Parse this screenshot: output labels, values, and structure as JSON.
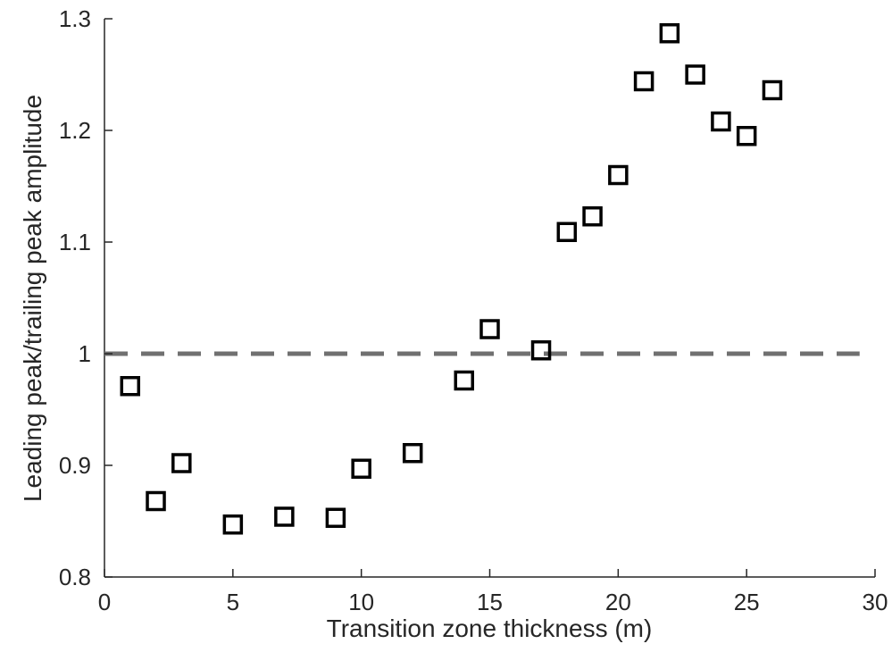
{
  "chart_data": {
    "type": "scatter",
    "title": "",
    "xlabel": "Transition zone thickness (m)",
    "ylabel": "Leading peak/trailing peak amplitude",
    "xlim": [
      0,
      30
    ],
    "ylim": [
      0.8,
      1.3
    ],
    "xticks": [
      0,
      5,
      10,
      15,
      20,
      25,
      30
    ],
    "xtick_labels": [
      "0",
      "5",
      "10",
      "15",
      "20",
      "25",
      "30"
    ],
    "yticks": [
      0.8,
      0.9,
      1.0,
      1.1,
      1.2,
      1.3
    ],
    "ytick_labels": [
      "0.8",
      "0.9",
      "1",
      "1.1",
      "1.2",
      "1.3"
    ],
    "grid": false,
    "marker": "square",
    "marker_color": "#000000",
    "reference_line": {
      "y": 1.0,
      "x_from": 0,
      "x_to": 29.4,
      "style": "dashed",
      "color": "#707070"
    },
    "series": [
      {
        "points": [
          {
            "x": 1,
            "y": 0.971
          },
          {
            "x": 2,
            "y": 0.868
          },
          {
            "x": 3,
            "y": 0.902
          },
          {
            "x": 5,
            "y": 0.847
          },
          {
            "x": 7,
            "y": 0.854
          },
          {
            "x": 9,
            "y": 0.853
          },
          {
            "x": 10,
            "y": 0.897
          },
          {
            "x": 12,
            "y": 0.911
          },
          {
            "x": 14,
            "y": 0.976
          },
          {
            "x": 15,
            "y": 1.022
          },
          {
            "x": 17,
            "y": 1.003
          },
          {
            "x": 18,
            "y": 1.109
          },
          {
            "x": 19,
            "y": 1.123
          },
          {
            "x": 20,
            "y": 1.16
          },
          {
            "x": 21,
            "y": 1.244
          },
          {
            "x": 22,
            "y": 1.287
          },
          {
            "x": 23,
            "y": 1.25
          },
          {
            "x": 24,
            "y": 1.208
          },
          {
            "x": 25,
            "y": 1.195
          },
          {
            "x": 26,
            "y": 1.236
          }
        ]
      }
    ]
  }
}
